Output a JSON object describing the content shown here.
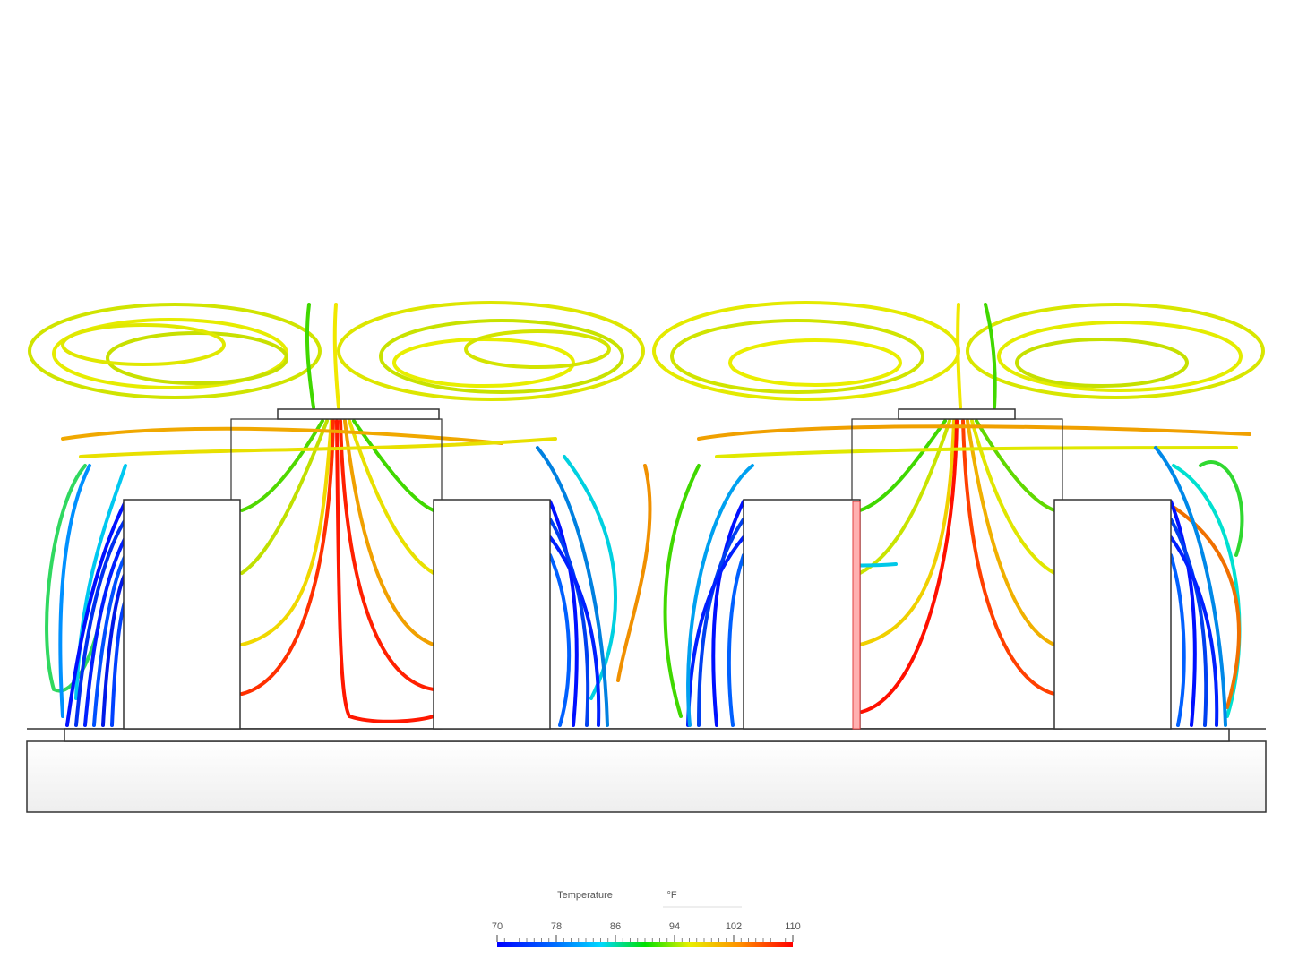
{
  "legend": {
    "title": "Temperature",
    "unit": "°F",
    "ticks": [
      70,
      78,
      86,
      94,
      102,
      110
    ]
  }
}
